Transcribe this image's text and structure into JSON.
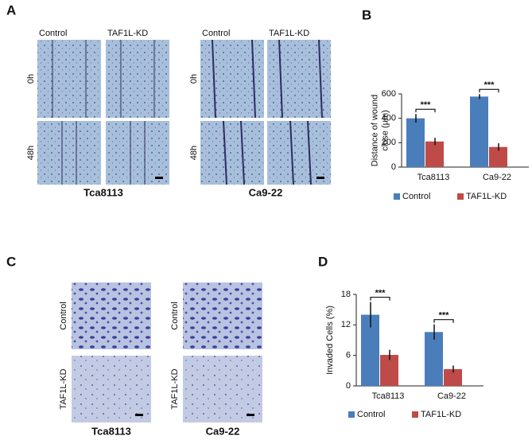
{
  "panels": {
    "A": {
      "label": "A",
      "groups": [
        {
          "name": "Tca8113",
          "columns": [
            "Control",
            "TAF1L-KD"
          ],
          "rows": [
            "0h",
            "48h"
          ]
        },
        {
          "name": "Ca9-22",
          "columns": [
            "Control",
            "TAF1L-KD"
          ],
          "rows": [
            "0h",
            "48h"
          ]
        }
      ]
    },
    "C": {
      "label": "C",
      "groups": [
        {
          "name": "Tca8113",
          "rows": [
            "Control",
            "TAF1L-KD"
          ]
        },
        {
          "name": "Ca9-22",
          "rows": [
            "Control",
            "TAF1L-KD"
          ]
        }
      ]
    }
  },
  "chart_data": [
    {
      "type": "bar",
      "panel": "B",
      "ylabel": [
        "Distance of wound",
        "close (μm)"
      ],
      "categories": [
        "Tca8113",
        "Ca9-22"
      ],
      "series": [
        {
          "name": "Control",
          "color": "#4a7ebb",
          "values": [
            400,
            578
          ],
          "errors": [
            35,
            20
          ]
        },
        {
          "name": "TAF1L-KD",
          "color": "#be4b48",
          "values": [
            210,
            165
          ],
          "errors": [
            30,
            30
          ]
        }
      ],
      "annotations": [
        "***",
        "***"
      ],
      "ylim": [
        0,
        600
      ],
      "yticks": [
        0,
        200,
        400,
        600
      ],
      "legend": "bottom"
    },
    {
      "type": "bar",
      "panel": "D",
      "ylabel": [
        "Invaded Cells (%)"
      ],
      "categories": [
        "Tca8113",
        "Ca9-22"
      ],
      "series": [
        {
          "name": "Control",
          "color": "#4a7ebb",
          "values": [
            14,
            10.6
          ],
          "errors": [
            2.5,
            1.5
          ]
        },
        {
          "name": "TAF1L-KD",
          "color": "#be4b48",
          "values": [
            6.1,
            3.3
          ],
          "errors": [
            1,
            0.7
          ]
        }
      ],
      "annotations": [
        "***",
        "***"
      ],
      "ylim": [
        0,
        18
      ],
      "yticks": [
        0,
        6,
        12,
        18
      ],
      "legend": "bottom"
    }
  ]
}
